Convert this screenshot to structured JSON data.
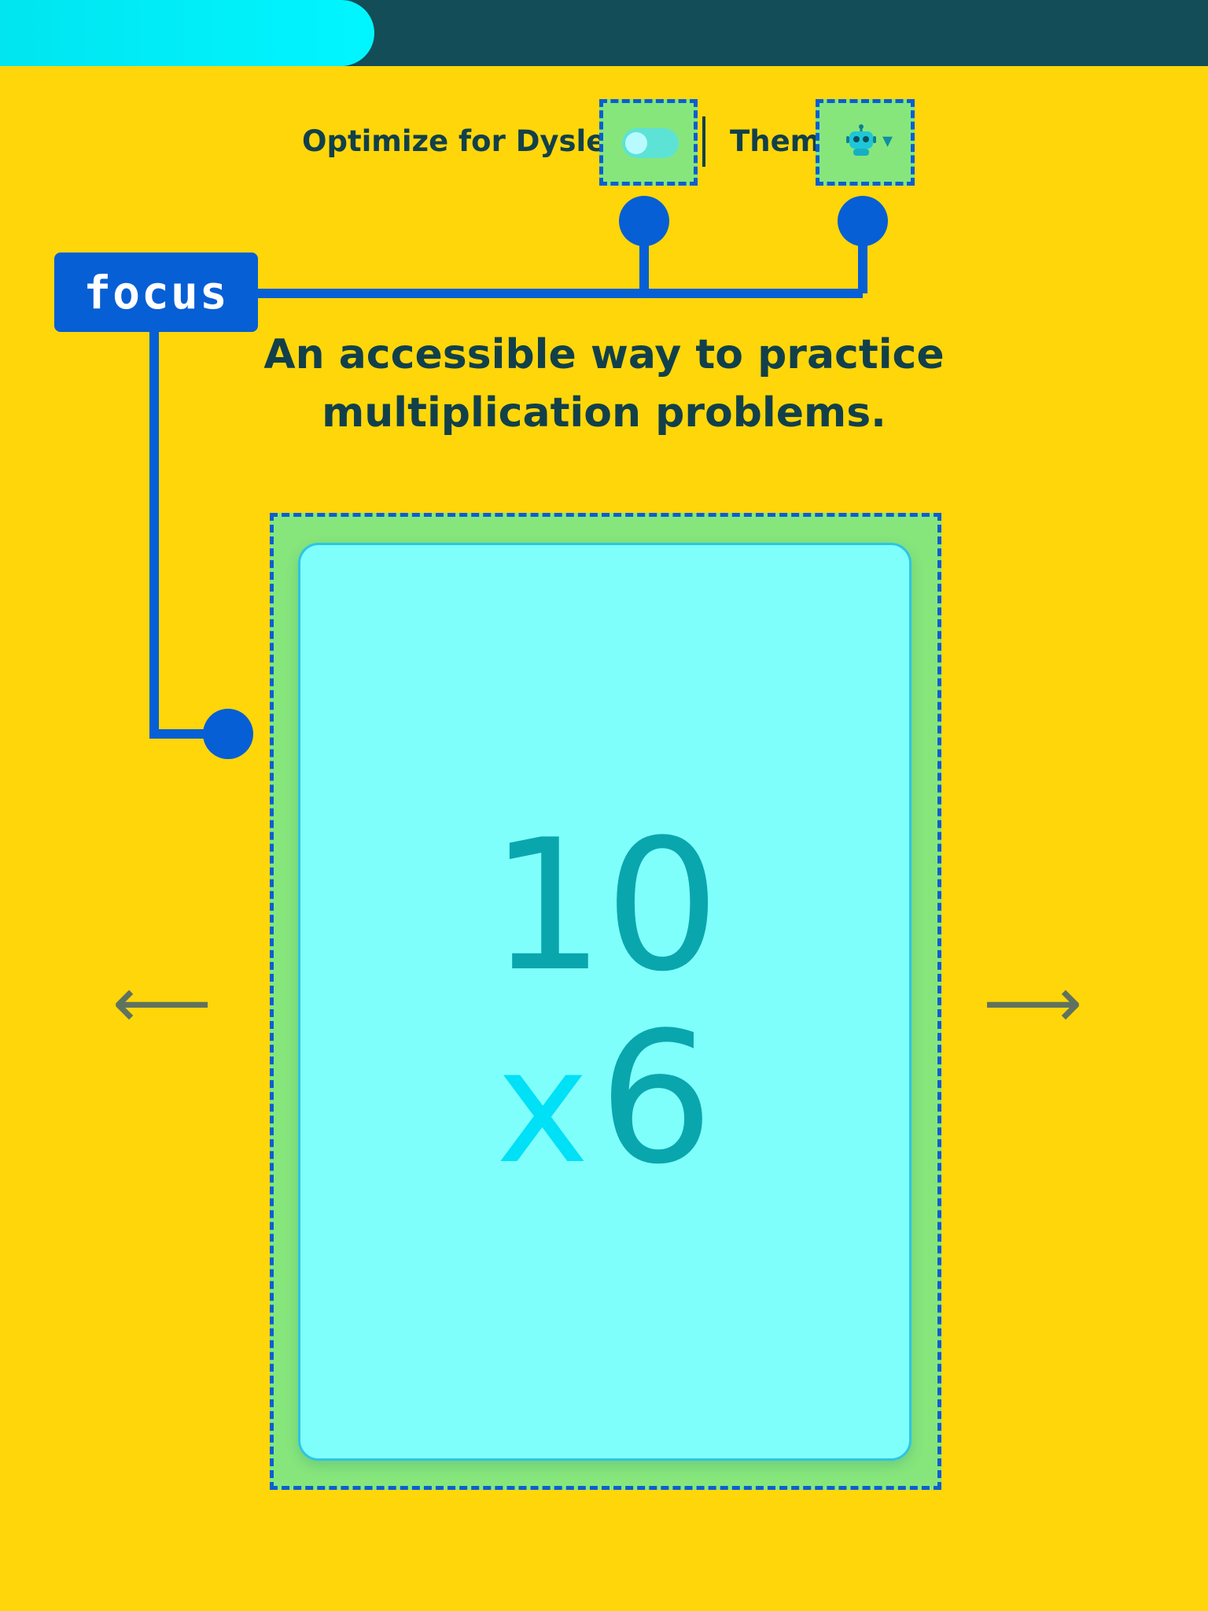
{
  "progress": {
    "fraction": 0.31
  },
  "settings": {
    "dyslexia_label": "Optimize for Dyslexia",
    "dyslexia_enabled": false,
    "theme_label": "Theme",
    "theme_icon": "robot-icon",
    "theme_caret": "▾"
  },
  "annotation": {
    "label": "focus"
  },
  "subtitle": "An accessible way to practice multiplication problems.",
  "card": {
    "top_number": "10",
    "operator": "x",
    "bottom_number": "6"
  },
  "nav": {
    "prev_arrow": "⟵",
    "next_arrow": "⟶"
  },
  "colors": {
    "background": "#FFD60A",
    "header": "#134D58",
    "progress": "#00F6FF",
    "highlight": "#86E67C",
    "highlight_border": "#0A5ED2",
    "card": "#7FFFFC",
    "digits": "#0AA6AD",
    "operator": "#00E0F6",
    "badge": "#065FD4"
  }
}
